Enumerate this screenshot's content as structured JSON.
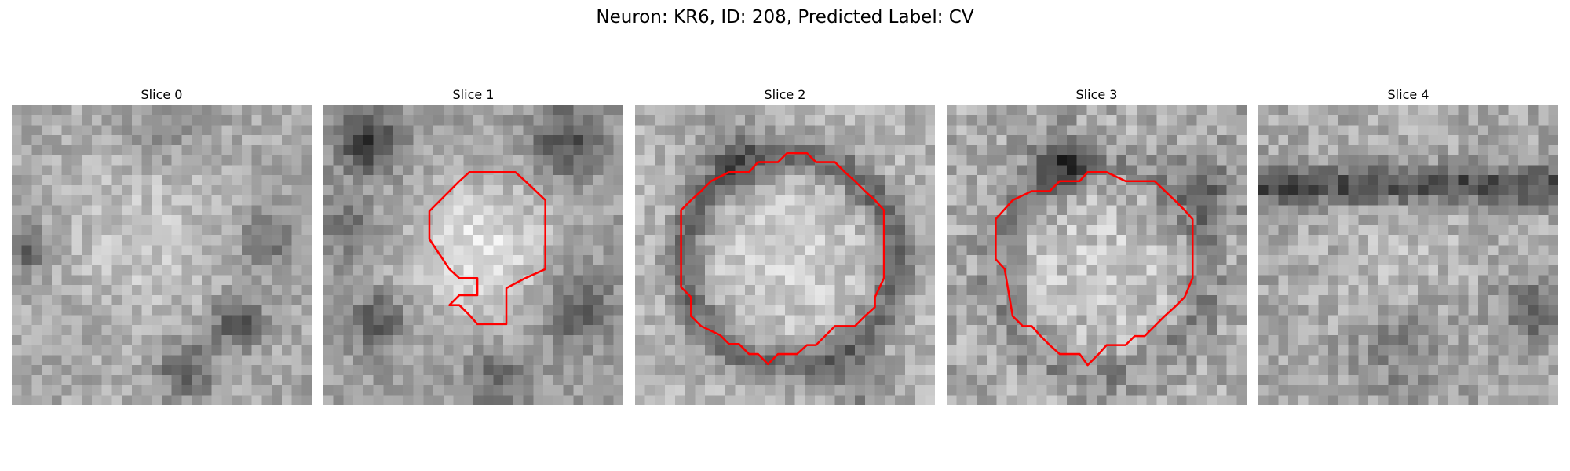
{
  "figure": {
    "title": "Neuron: KR6, ID: 208, Predicted Label: CV"
  },
  "slices": [
    {
      "title": "Slice 0",
      "contour": false
    },
    {
      "title": "Slice 1",
      "contour": true
    },
    {
      "title": "Slice 2",
      "contour": true
    },
    {
      "title": "Slice 3",
      "contour": true
    },
    {
      "title": "Slice 4",
      "contour": false
    }
  ],
  "colors": {
    "contour": "#ff0000",
    "background": "#ffffff",
    "image_colormap": "grayscale"
  }
}
